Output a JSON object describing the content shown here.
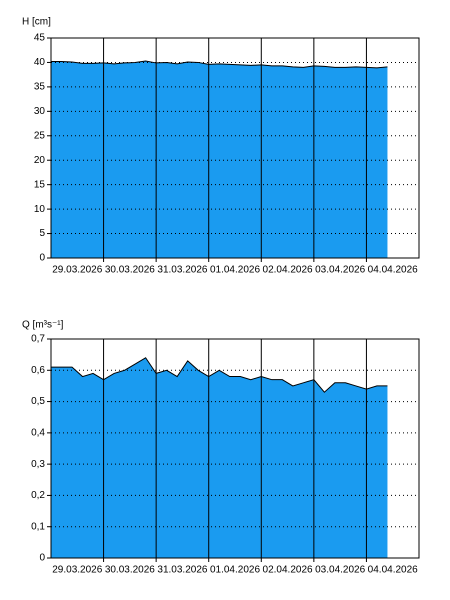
{
  "chart_data": [
    {
      "type": "area",
      "y_label": "H [cm]",
      "color": "#1a9bf0",
      "x": [
        0,
        0.2,
        0.4,
        0.6,
        0.8,
        1,
        1.2,
        1.4,
        1.6,
        1.8,
        2,
        2.2,
        2.4,
        2.6,
        2.8,
        3,
        3.2,
        3.4,
        3.6,
        3.8,
        4,
        4.2,
        4.4,
        4.6,
        4.8,
        5,
        5.2,
        5.4,
        5.6,
        5.8,
        6,
        6.2,
        6.4
      ],
      "values": [
        40.2,
        40.2,
        40.1,
        39.8,
        39.8,
        39.9,
        39.7,
        39.9,
        40.0,
        40.3,
        39.9,
        40.0,
        39.7,
        40.1,
        40.0,
        39.6,
        39.7,
        39.6,
        39.5,
        39.4,
        39.5,
        39.3,
        39.3,
        39.1,
        39.0,
        39.3,
        39.2,
        39.0,
        39.0,
        39.1,
        39.0,
        38.9,
        39.1
      ],
      "xlim": [
        0,
        7
      ],
      "xticks": [
        {
          "value": 0.5,
          "label": "29.03.2026"
        },
        {
          "value": 1.5,
          "label": "30.03.2026"
        },
        {
          "value": 2.5,
          "label": "31.03.2026"
        },
        {
          "value": 3.5,
          "label": "01.04.2026"
        },
        {
          "value": 4.5,
          "label": "02.04.2026"
        },
        {
          "value": 5.5,
          "label": "03.04.2026"
        },
        {
          "value": 6.5,
          "label": "04.04.2026"
        }
      ],
      "xgrid": [
        1,
        2,
        3,
        4,
        5,
        6
      ],
      "ylim": [
        0,
        45
      ],
      "yticks": [
        0,
        5,
        10,
        15,
        20,
        25,
        30,
        35,
        40,
        45
      ],
      "grid": true
    },
    {
      "type": "area",
      "y_label": "Q [m³s⁻¹]",
      "color": "#1a9bf0",
      "x": [
        0,
        0.2,
        0.4,
        0.6,
        0.8,
        1,
        1.2,
        1.4,
        1.6,
        1.8,
        2,
        2.2,
        2.4,
        2.6,
        2.8,
        3,
        3.2,
        3.4,
        3.6,
        3.8,
        4,
        4.2,
        4.4,
        4.6,
        4.8,
        5,
        5.2,
        5.4,
        5.6,
        5.8,
        6,
        6.2,
        6.4
      ],
      "values": [
        0.61,
        0.61,
        0.61,
        0.58,
        0.59,
        0.57,
        0.59,
        0.6,
        0.62,
        0.64,
        0.59,
        0.6,
        0.58,
        0.63,
        0.6,
        0.58,
        0.6,
        0.58,
        0.58,
        0.57,
        0.58,
        0.57,
        0.57,
        0.55,
        0.56,
        0.57,
        0.53,
        0.56,
        0.56,
        0.55,
        0.54,
        0.55,
        0.55
      ],
      "xlim": [
        0,
        7
      ],
      "xticks": [
        {
          "value": 0.5,
          "label": "29.03.2026"
        },
        {
          "value": 1.5,
          "label": "30.03.2026"
        },
        {
          "value": 2.5,
          "label": "31.03.2026"
        },
        {
          "value": 3.5,
          "label": "01.04.2026"
        },
        {
          "value": 4.5,
          "label": "02.04.2026"
        },
        {
          "value": 5.5,
          "label": "03.04.2026"
        },
        {
          "value": 6.5,
          "label": "04.04.2026"
        }
      ],
      "xgrid": [
        1,
        2,
        3,
        4,
        5,
        6
      ],
      "ylim": [
        0,
        0.7
      ],
      "yticks": [
        0,
        {
          "value": 0.1,
          "label": "0,1"
        },
        {
          "value": 0.2,
          "label": "0,2"
        },
        {
          "value": 0.3,
          "label": "0,3"
        },
        {
          "value": 0.4,
          "label": "0,4"
        },
        {
          "value": 0.5,
          "label": "0,5"
        },
        {
          "value": 0.6,
          "label": "0,6"
        },
        {
          "value": 0.7,
          "label": "0,7"
        }
      ],
      "grid": true
    }
  ]
}
